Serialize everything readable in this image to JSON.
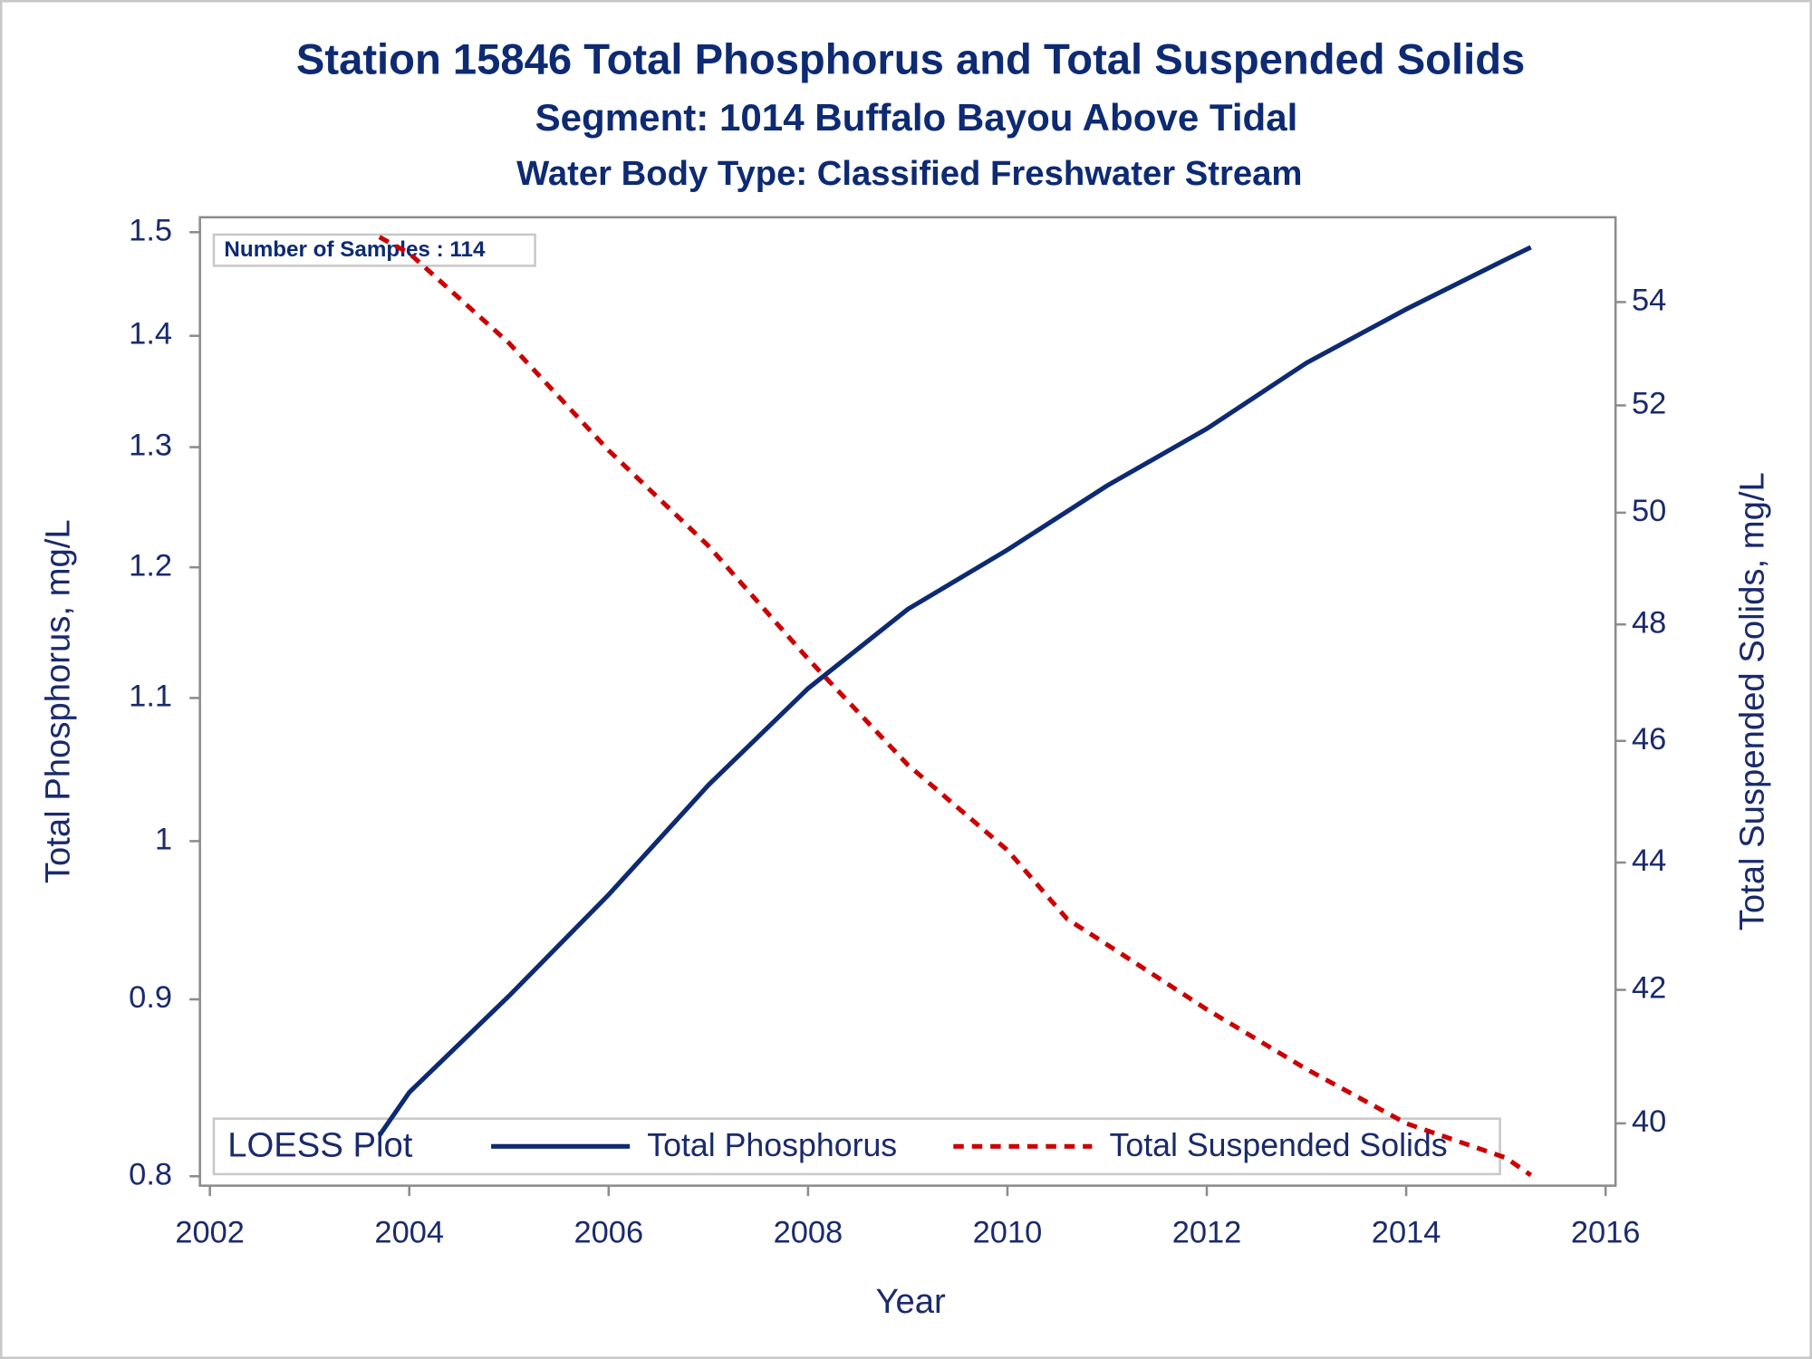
{
  "chart_data": {
    "type": "line",
    "title": "Station 15846  Total Phosphorus and Total Suspended Solids",
    "subtitle": "Segment: 1014  Buffalo Bayou Above Tidal",
    "subtitle2": "Water Body Type: Classified Freshwater Stream",
    "x_label": "Year",
    "y_label": "Total Phosphorus, mg/L",
    "y2_label": "Total Suspended Solids, mg/L",
    "annotation": "Number of Samples : 114",
    "legend_title": "LOESS Plot",
    "legend_position": "bottom",
    "y_log_scale": true,
    "y2_log_scale": true,
    "xlim": [
      2001.9,
      2016.1
    ],
    "xticks": [
      2002,
      2004,
      2006,
      2008,
      2010,
      2012,
      2014,
      2016
    ],
    "ylim": [
      0.795,
      1.515
    ],
    "yticks": [
      0.8,
      0.9,
      1,
      1.1,
      1.2,
      1.3,
      1.4,
      1.5
    ],
    "y2lim": [
      39.1,
      55.7
    ],
    "y2ticks": [
      40,
      42,
      44,
      46,
      48,
      50,
      52,
      54
    ],
    "series": [
      {
        "name": "Total Phosphorus",
        "color": "#0d2a73",
        "line_style": "solid",
        "x": [
          2003.7,
          2004,
          2005,
          2006,
          2007,
          2008,
          2009,
          2010,
          2011,
          2012,
          2013,
          2014,
          2015,
          2015.25
        ],
        "values": [
          0.822,
          0.846,
          0.902,
          0.965,
          1.038,
          1.107,
          1.167,
          1.214,
          1.267,
          1.316,
          1.375,
          1.425,
          1.473,
          1.485
        ]
      },
      {
        "name": "Total Suspended Solids",
        "color": "#cc0000",
        "line_style": "dashed",
        "axis": "y2",
        "x": [
          2003.7,
          2004,
          2005,
          2006,
          2007,
          2008,
          2009,
          2010,
          2010.6,
          2011,
          2012,
          2013,
          2014,
          2015,
          2015.25
        ],
        "values": [
          55.3,
          54.97,
          53.2,
          51.15,
          49.4,
          47.4,
          45.6,
          44.2,
          43.1,
          42.7,
          41.7,
          40.8,
          40.0,
          39.5,
          39.25
        ]
      }
    ]
  }
}
